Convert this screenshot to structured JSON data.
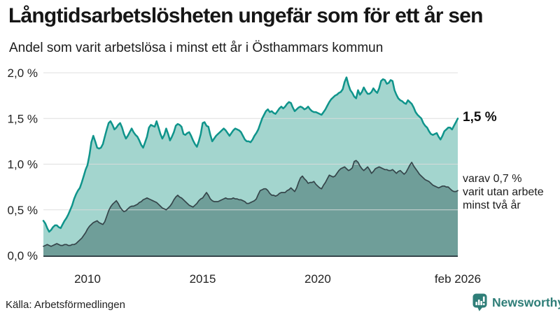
{
  "header": {
    "title": "Långtidsarbetslösheten ungefär som för ett år sen",
    "subtitle": "Andel som varit arbetslösa i minst ett år i Östhammars kommun"
  },
  "annotations": {
    "primary_value": "1,5 %",
    "secondary": {
      "line1": "varav 0,7 %",
      "line2": "varit utan arbete",
      "line3": "minst två år"
    }
  },
  "source": "Källa: Arbetsförmedlingen",
  "branding": {
    "name": "Newsworthy",
    "icon": "newsworthy-bar-chart-bubble-logo",
    "color": "#2f7e78"
  },
  "chart_data": {
    "type": "area",
    "title": "Långtidsarbetslösheten ungefär som för ett år sen",
    "subtitle": "Andel som varit arbetslösa i minst ett år i Östhammars kommun",
    "xlabel": "",
    "ylabel": "",
    "unit": "%",
    "grid": true,
    "xlim": [
      2008.083,
      2026.083
    ],
    "ylim": [
      0,
      2
    ],
    "yticks": [
      {
        "label": "0,0 %",
        "value": 0.0
      },
      {
        "label": "0,5 %",
        "value": 0.5
      },
      {
        "label": "1,0 %",
        "value": 1.0
      },
      {
        "label": "1,5 %",
        "value": 1.5
      },
      {
        "label": "2,0 %",
        "value": 2.0
      }
    ],
    "xticks": [
      {
        "label": "2010",
        "value": 2010.0
      },
      {
        "label": "2015",
        "value": 2015.0
      },
      {
        "label": "2020",
        "value": 2020.0
      },
      {
        "label": "feb 2026",
        "value": 2026.083
      }
    ],
    "colors": {
      "line_primary": "#0f948b",
      "fill_primary": "#a3d5ce",
      "line_secondary": "#35454a",
      "fill_secondary": "#6f9e99",
      "gridline": "#dcdcdc",
      "axis": "#35454a"
    },
    "series": [
      {
        "id": "minst-ett-ar",
        "name": "Andel arbetslösa minst ett år",
        "end_label": "1,5 %",
        "latest_value": 1.5,
        "line": "#0f948b",
        "fill": "#a3d5ce",
        "line_width": 2.5,
        "start_year": 2008,
        "start_month": 2,
        "freq": "monthly",
        "values": [
          0.38,
          0.35,
          0.3,
          0.26,
          0.28,
          0.31,
          0.33,
          0.33,
          0.31,
          0.3,
          0.34,
          0.38,
          0.41,
          0.45,
          0.5,
          0.55,
          0.62,
          0.67,
          0.71,
          0.74,
          0.8,
          0.87,
          0.94,
          0.99,
          1.1,
          1.24,
          1.31,
          1.25,
          1.18,
          1.17,
          1.18,
          1.22,
          1.3,
          1.38,
          1.45,
          1.47,
          1.43,
          1.38,
          1.4,
          1.43,
          1.45,
          1.4,
          1.33,
          1.28,
          1.31,
          1.35,
          1.39,
          1.35,
          1.32,
          1.3,
          1.26,
          1.21,
          1.18,
          1.24,
          1.3,
          1.4,
          1.43,
          1.42,
          1.41,
          1.47,
          1.4,
          1.33,
          1.28,
          1.32,
          1.39,
          1.33,
          1.26,
          1.3,
          1.35,
          1.42,
          1.44,
          1.43,
          1.41,
          1.33,
          1.32,
          1.34,
          1.35,
          1.31,
          1.26,
          1.22,
          1.19,
          1.25,
          1.33,
          1.45,
          1.46,
          1.42,
          1.41,
          1.32,
          1.25,
          1.28,
          1.31,
          1.33,
          1.35,
          1.37,
          1.39,
          1.37,
          1.34,
          1.31,
          1.34,
          1.37,
          1.39,
          1.38,
          1.37,
          1.35,
          1.31,
          1.27,
          1.25,
          1.25,
          1.24,
          1.27,
          1.31,
          1.34,
          1.38,
          1.44,
          1.5,
          1.54,
          1.58,
          1.6,
          1.57,
          1.58,
          1.56,
          1.55,
          1.58,
          1.61,
          1.63,
          1.61,
          1.63,
          1.66,
          1.68,
          1.67,
          1.62,
          1.58,
          1.6,
          1.62,
          1.63,
          1.62,
          1.6,
          1.61,
          1.63,
          1.6,
          1.58,
          1.57,
          1.57,
          1.56,
          1.55,
          1.54,
          1.57,
          1.6,
          1.64,
          1.68,
          1.71,
          1.73,
          1.75,
          1.76,
          1.78,
          1.79,
          1.82,
          1.9,
          1.95,
          1.87,
          1.81,
          1.78,
          1.74,
          1.72,
          1.81,
          1.76,
          1.79,
          1.84,
          1.8,
          1.77,
          1.77,
          1.79,
          1.83,
          1.8,
          1.78,
          1.83,
          1.91,
          1.93,
          1.92,
          1.88,
          1.89,
          1.92,
          1.91,
          1.81,
          1.76,
          1.72,
          1.7,
          1.69,
          1.67,
          1.66,
          1.7,
          1.68,
          1.66,
          1.62,
          1.57,
          1.54,
          1.52,
          1.5,
          1.45,
          1.42,
          1.4,
          1.36,
          1.33,
          1.32,
          1.33,
          1.34,
          1.3,
          1.27,
          1.31,
          1.36,
          1.38,
          1.4,
          1.4,
          1.38,
          1.42,
          1.46,
          1.5
        ]
      },
      {
        "id": "minst-tva-ar",
        "name": "varav utan arbete minst två år",
        "end_label": "0,7 %",
        "latest_value": 0.7,
        "line": "#35454a",
        "fill": "#6f9e99",
        "line_width": 1.7,
        "start_year": 2008,
        "start_month": 2,
        "freq": "monthly",
        "values": [
          0.1,
          0.11,
          0.12,
          0.11,
          0.1,
          0.11,
          0.12,
          0.13,
          0.12,
          0.11,
          0.11,
          0.12,
          0.12,
          0.11,
          0.11,
          0.12,
          0.12,
          0.13,
          0.15,
          0.17,
          0.19,
          0.22,
          0.25,
          0.29,
          0.32,
          0.34,
          0.36,
          0.37,
          0.38,
          0.36,
          0.35,
          0.34,
          0.37,
          0.43,
          0.49,
          0.53,
          0.56,
          0.58,
          0.6,
          0.57,
          0.53,
          0.5,
          0.48,
          0.49,
          0.51,
          0.53,
          0.54,
          0.54,
          0.55,
          0.56,
          0.58,
          0.59,
          0.61,
          0.62,
          0.63,
          0.62,
          0.61,
          0.6,
          0.59,
          0.58,
          0.56,
          0.54,
          0.52,
          0.51,
          0.5,
          0.52,
          0.54,
          0.57,
          0.61,
          0.64,
          0.66,
          0.64,
          0.63,
          0.61,
          0.59,
          0.57,
          0.55,
          0.54,
          0.53,
          0.55,
          0.57,
          0.6,
          0.62,
          0.63,
          0.66,
          0.69,
          0.66,
          0.62,
          0.6,
          0.59,
          0.59,
          0.59,
          0.6,
          0.61,
          0.62,
          0.63,
          0.62,
          0.62,
          0.62,
          0.63,
          0.62,
          0.62,
          0.61,
          0.61,
          0.6,
          0.59,
          0.57,
          0.57,
          0.58,
          0.59,
          0.6,
          0.62,
          0.67,
          0.71,
          0.72,
          0.73,
          0.73,
          0.71,
          0.68,
          0.66,
          0.66,
          0.65,
          0.66,
          0.68,
          0.69,
          0.69,
          0.69,
          0.71,
          0.72,
          0.74,
          0.72,
          0.7,
          0.74,
          0.8,
          0.85,
          0.87,
          0.84,
          0.82,
          0.79,
          0.8,
          0.8,
          0.81,
          0.78,
          0.76,
          0.74,
          0.73,
          0.77,
          0.8,
          0.84,
          0.88,
          0.87,
          0.86,
          0.87,
          0.9,
          0.93,
          0.95,
          0.96,
          0.97,
          0.95,
          0.93,
          0.94,
          0.96,
          1.03,
          1.04,
          1.02,
          0.98,
          0.95,
          0.93,
          0.95,
          0.97,
          0.94,
          0.9,
          0.92,
          0.95,
          0.96,
          0.97,
          0.96,
          0.95,
          0.94,
          0.94,
          0.93,
          0.93,
          0.94,
          0.92,
          0.9,
          0.92,
          0.93,
          0.91,
          0.89,
          0.91,
          0.95,
          0.99,
          1.02,
          0.98,
          0.95,
          0.92,
          0.89,
          0.87,
          0.85,
          0.83,
          0.82,
          0.81,
          0.79,
          0.77,
          0.76,
          0.75,
          0.74,
          0.75,
          0.76,
          0.76,
          0.75,
          0.75,
          0.73,
          0.71,
          0.7,
          0.7,
          0.71
        ]
      }
    ],
    "legend_position": "right-annotations",
    "source": "Källa: Arbetsförmedlingen"
  }
}
